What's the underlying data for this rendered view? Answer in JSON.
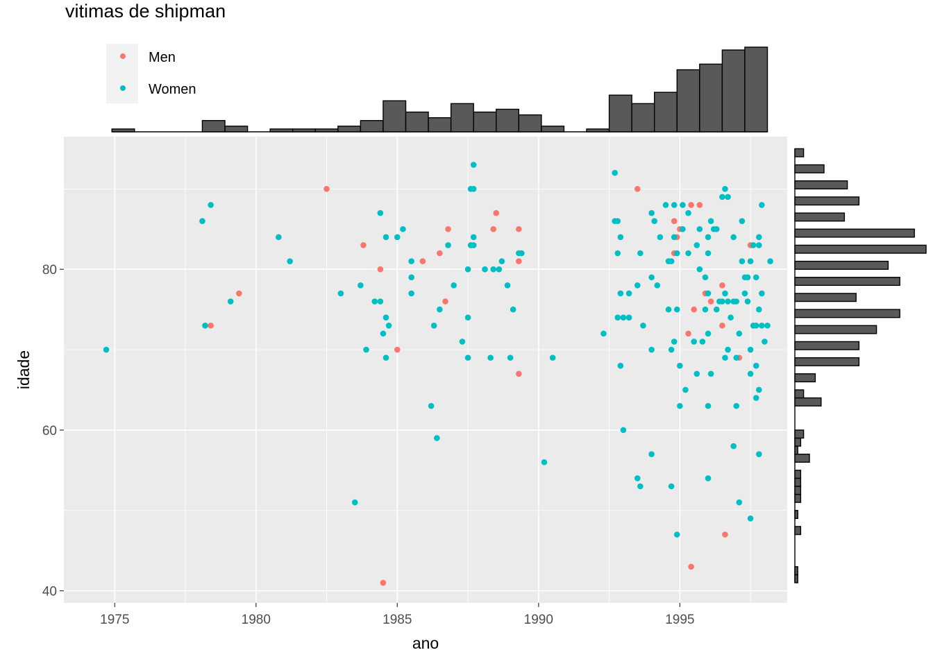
{
  "chart_data": {
    "type": "scatter",
    "title": "vitimas de shipman",
    "xlabel": "ano",
    "ylabel": "idade",
    "xlim": [
      1973.2,
      1998.8
    ],
    "ylim": [
      38.5,
      96.5
    ],
    "x_ticks": [
      1975,
      1980,
      1985,
      1990,
      1995
    ],
    "y_ticks": [
      40,
      60,
      80
    ],
    "grid": true,
    "legend_position": "top-left",
    "colors": {
      "Men": "#f8766d",
      "Women": "#00bfc4",
      "panel": "#ebebeb",
      "bars": "#595959"
    },
    "series": [
      {
        "name": "Men",
        "points": [
          [
            1978.4,
            73
          ],
          [
            1979.4,
            77
          ],
          [
            1982.5,
            90
          ],
          [
            1983.8,
            83
          ],
          [
            1984.4,
            80
          ],
          [
            1984.5,
            41
          ],
          [
            1985.0,
            70
          ],
          [
            1985.5,
            79
          ],
          [
            1985.9,
            81
          ],
          [
            1986.5,
            82
          ],
          [
            1986.7,
            76
          ],
          [
            1986.8,
            85
          ],
          [
            1988.4,
            85
          ],
          [
            1988.5,
            87
          ],
          [
            1989.3,
            85
          ],
          [
            1989.3,
            81
          ],
          [
            1989.3,
            67
          ],
          [
            1993.5,
            90
          ],
          [
            1994.8,
            86
          ],
          [
            1994.8,
            82
          ],
          [
            1994.9,
            84
          ],
          [
            1995.0,
            85
          ],
          [
            1995.3,
            72
          ],
          [
            1995.4,
            88
          ],
          [
            1995.4,
            43
          ],
          [
            1995.5,
            75
          ],
          [
            1995.7,
            88
          ],
          [
            1995.9,
            77
          ],
          [
            1996.1,
            76
          ],
          [
            1996.5,
            78
          ],
          [
            1996.5,
            73
          ],
          [
            1996.6,
            47
          ],
          [
            1997.1,
            69
          ],
          [
            1997.5,
            83
          ]
        ]
      },
      {
        "name": "Women",
        "points": [
          [
            1974.7,
            70
          ],
          [
            1978.1,
            86
          ],
          [
            1978.2,
            73
          ],
          [
            1978.4,
            88
          ],
          [
            1979.1,
            76
          ],
          [
            1980.8,
            84
          ],
          [
            1981.2,
            81
          ],
          [
            1983.0,
            77
          ],
          [
            1983.5,
            51
          ],
          [
            1983.7,
            78
          ],
          [
            1983.9,
            70
          ],
          [
            1984.2,
            76
          ],
          [
            1984.4,
            87
          ],
          [
            1984.4,
            76
          ],
          [
            1984.5,
            72
          ],
          [
            1984.6,
            84
          ],
          [
            1984.6,
            74
          ],
          [
            1984.6,
            69
          ],
          [
            1984.7,
            73
          ],
          [
            1985.0,
            84
          ],
          [
            1985.2,
            85
          ],
          [
            1985.5,
            81
          ],
          [
            1985.5,
            79
          ],
          [
            1985.5,
            77
          ],
          [
            1986.2,
            63
          ],
          [
            1986.3,
            73
          ],
          [
            1986.4,
            59
          ],
          [
            1986.5,
            75
          ],
          [
            1986.8,
            83
          ],
          [
            1987.0,
            78
          ],
          [
            1987.3,
            71
          ],
          [
            1987.5,
            80
          ],
          [
            1987.5,
            74
          ],
          [
            1987.5,
            69
          ],
          [
            1987.6,
            90
          ],
          [
            1987.6,
            83
          ],
          [
            1987.7,
            93
          ],
          [
            1987.7,
            90
          ],
          [
            1987.7,
            84
          ],
          [
            1987.7,
            83
          ],
          [
            1988.1,
            80
          ],
          [
            1988.3,
            69
          ],
          [
            1988.4,
            80
          ],
          [
            1988.6,
            80
          ],
          [
            1988.7,
            81
          ],
          [
            1988.9,
            78
          ],
          [
            1989.0,
            69
          ],
          [
            1989.1,
            75
          ],
          [
            1989.3,
            82
          ],
          [
            1989.4,
            82
          ],
          [
            1990.2,
            56
          ],
          [
            1990.5,
            69
          ],
          [
            1992.3,
            72
          ],
          [
            1992.7,
            92
          ],
          [
            1992.7,
            86
          ],
          [
            1992.8,
            86
          ],
          [
            1992.8,
            82
          ],
          [
            1992.8,
            74
          ],
          [
            1992.9,
            77
          ],
          [
            1992.9,
            84
          ],
          [
            1992.9,
            68
          ],
          [
            1993.0,
            74
          ],
          [
            1993.0,
            60
          ],
          [
            1993.2,
            77
          ],
          [
            1993.2,
            74
          ],
          [
            1993.5,
            78
          ],
          [
            1993.5,
            54
          ],
          [
            1993.6,
            82
          ],
          [
            1993.6,
            53
          ],
          [
            1993.7,
            73
          ],
          [
            1994.0,
            57
          ],
          [
            1994.0,
            79
          ],
          [
            1994.0,
            70
          ],
          [
            1994.0,
            87
          ],
          [
            1994.1,
            86
          ],
          [
            1994.2,
            78
          ],
          [
            1994.3,
            84
          ],
          [
            1994.5,
            88
          ],
          [
            1994.6,
            81
          ],
          [
            1994.6,
            75
          ],
          [
            1994.7,
            81
          ],
          [
            1994.7,
            53
          ],
          [
            1994.7,
            70
          ],
          [
            1994.8,
            71
          ],
          [
            1994.8,
            88
          ],
          [
            1994.8,
            84
          ],
          [
            1994.9,
            82
          ],
          [
            1994.9,
            75
          ],
          [
            1994.9,
            47
          ],
          [
            1995.0,
            68
          ],
          [
            1995.0,
            63
          ],
          [
            1995.1,
            85
          ],
          [
            1995.1,
            88
          ],
          [
            1995.2,
            65
          ],
          [
            1995.3,
            82
          ],
          [
            1995.3,
            87
          ],
          [
            1995.5,
            71
          ],
          [
            1995.6,
            67
          ],
          [
            1995.6,
            83
          ],
          [
            1995.7,
            80
          ],
          [
            1995.7,
            85
          ],
          [
            1995.8,
            71
          ],
          [
            1995.9,
            75
          ],
          [
            1995.9,
            79
          ],
          [
            1996.0,
            84
          ],
          [
            1996.0,
            82
          ],
          [
            1996.0,
            77
          ],
          [
            1996.0,
            72
          ],
          [
            1996.0,
            63
          ],
          [
            1996.0,
            54
          ],
          [
            1996.1,
            86
          ],
          [
            1996.1,
            67
          ],
          [
            1996.2,
            85
          ],
          [
            1996.3,
            85
          ],
          [
            1996.3,
            75
          ],
          [
            1996.4,
            76
          ],
          [
            1996.5,
            89
          ],
          [
            1996.5,
            76
          ],
          [
            1996.6,
            77
          ],
          [
            1996.6,
            69
          ],
          [
            1996.6,
            90
          ],
          [
            1996.7,
            89
          ],
          [
            1996.7,
            76
          ],
          [
            1996.7,
            70
          ],
          [
            1996.8,
            74
          ],
          [
            1996.9,
            76
          ],
          [
            1996.9,
            58
          ],
          [
            1996.9,
            84
          ],
          [
            1997.0,
            76
          ],
          [
            1997.0,
            69
          ],
          [
            1997.0,
            63
          ],
          [
            1997.1,
            72
          ],
          [
            1997.1,
            51
          ],
          [
            1997.2,
            86
          ],
          [
            1997.2,
            81
          ],
          [
            1997.3,
            79
          ],
          [
            1997.3,
            77
          ],
          [
            1997.4,
            76
          ],
          [
            1997.4,
            79
          ],
          [
            1997.5,
            81
          ],
          [
            1997.5,
            67
          ],
          [
            1997.5,
            49
          ],
          [
            1997.5,
            70
          ],
          [
            1997.6,
            73
          ],
          [
            1997.6,
            83
          ],
          [
            1997.7,
            64
          ],
          [
            1997.7,
            73
          ],
          [
            1997.7,
            68
          ],
          [
            1997.7,
            79
          ],
          [
            1997.8,
            75
          ],
          [
            1997.8,
            65
          ],
          [
            1997.8,
            84
          ],
          [
            1997.8,
            83
          ],
          [
            1997.8,
            57
          ],
          [
            1997.9,
            88
          ],
          [
            1997.9,
            77
          ],
          [
            1997.9,
            73
          ],
          [
            1998.0,
            71
          ],
          [
            1998.1,
            73
          ],
          [
            1998.2,
            81
          ]
        ]
      }
    ],
    "marginal_x": {
      "bins": [
        [
          1974.9,
          1975.7,
          1
        ],
        [
          1975.7,
          1976.5,
          0
        ],
        [
          1976.5,
          1977.3,
          0
        ],
        [
          1977.3,
          1978.1,
          0
        ],
        [
          1978.1,
          1978.9,
          4
        ],
        [
          1978.9,
          1979.7,
          2
        ],
        [
          1979.7,
          1980.5,
          0
        ],
        [
          1980.5,
          1981.3,
          1
        ],
        [
          1981.3,
          1982.1,
          1
        ],
        [
          1982.1,
          1982.9,
          1
        ],
        [
          1982.9,
          1983.7,
          2
        ],
        [
          1983.7,
          1984.5,
          4
        ],
        [
          1984.5,
          1985.3,
          11
        ],
        [
          1985.3,
          1986.1,
          7
        ],
        [
          1986.1,
          1986.9,
          5
        ],
        [
          1986.9,
          1987.7,
          10
        ],
        [
          1987.7,
          1988.5,
          7
        ],
        [
          1988.5,
          1989.3,
          8
        ],
        [
          1989.3,
          1990.1,
          6
        ],
        [
          1990.1,
          1990.9,
          2
        ],
        [
          1990.9,
          1991.7,
          0
        ],
        [
          1991.7,
          1992.5,
          1
        ],
        [
          1992.5,
          1993.3,
          13
        ],
        [
          1993.3,
          1994.1,
          10
        ],
        [
          1994.1,
          1994.9,
          14
        ],
        [
          1994.9,
          1995.7,
          22
        ],
        [
          1995.7,
          1996.5,
          24
        ],
        [
          1996.5,
          1997.3,
          29
        ],
        [
          1997.3,
          1998.1,
          30
        ]
      ]
    },
    "marginal_y": {
      "bins": [
        [
          41,
          42,
          1
        ],
        [
          42,
          43,
          1
        ],
        [
          43,
          44,
          0
        ],
        [
          44,
          45,
          0
        ],
        [
          45,
          46,
          0
        ],
        [
          46,
          47,
          0
        ],
        [
          47,
          48,
          2
        ],
        [
          48,
          49,
          0
        ],
        [
          49,
          50,
          1
        ],
        [
          50,
          51,
          0
        ],
        [
          51,
          52,
          2
        ],
        [
          52,
          53,
          2
        ],
        [
          53,
          54,
          2
        ],
        [
          54,
          55,
          2
        ],
        [
          55,
          56,
          0
        ],
        [
          56,
          57,
          5
        ],
        [
          57,
          58,
          1
        ],
        [
          58,
          59,
          2
        ],
        [
          59,
          60,
          3
        ],
        [
          60,
          61,
          0
        ],
        [
          61,
          62,
          0
        ],
        [
          62,
          63,
          0
        ],
        [
          63,
          64,
          9
        ],
        [
          64,
          65,
          3
        ],
        [
          65,
          66,
          0
        ],
        [
          66,
          67,
          7
        ],
        [
          67,
          68,
          0
        ],
        [
          68,
          69,
          22
        ],
        [
          69,
          70,
          0
        ],
        [
          70,
          71,
          22
        ],
        [
          71,
          72,
          0
        ],
        [
          72,
          73,
          28
        ],
        [
          73,
          74,
          0
        ],
        [
          74,
          75,
          36
        ],
        [
          75,
          76,
          0
        ],
        [
          76,
          77,
          21
        ],
        [
          77,
          78,
          0
        ],
        [
          78,
          79,
          36
        ],
        [
          79,
          80,
          0
        ],
        [
          80,
          81,
          32
        ],
        [
          81,
          82,
          0
        ],
        [
          82,
          83,
          45
        ],
        [
          83,
          84,
          0
        ],
        [
          84,
          85,
          41
        ],
        [
          85,
          86,
          0
        ],
        [
          86,
          87,
          17
        ],
        [
          87,
          88,
          0
        ],
        [
          88,
          89,
          22
        ],
        [
          89,
          90,
          0
        ],
        [
          90,
          91,
          18
        ],
        [
          91,
          92,
          0
        ],
        [
          92,
          93,
          10
        ],
        [
          93,
          94,
          0
        ],
        [
          94,
          95,
          3
        ]
      ]
    }
  }
}
